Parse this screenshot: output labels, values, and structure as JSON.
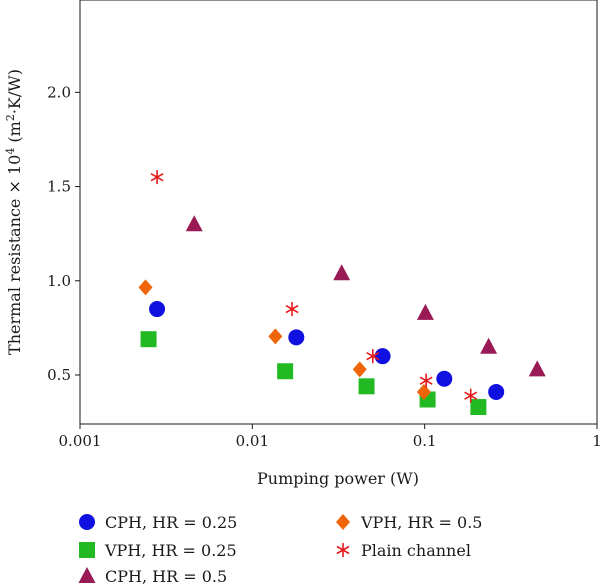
{
  "chart_data": {
    "type": "scatter",
    "x_scale": "log",
    "xlim": [
      0.001,
      1
    ],
    "ylim": [
      0.24,
      2.49
    ],
    "xlabel": "Pumping power (W)",
    "ylabel_main": "Thermal resistance × 10",
    "ylabel_exp": "4",
    "ylabel_unit_pre": " (m",
    "ylabel_unit_exp": "2",
    "ylabel_unit_post": "·K/W)",
    "x_ticks": [
      {
        "value": 0.001,
        "label": "0.001"
      },
      {
        "value": 0.01,
        "label": "0.01"
      },
      {
        "value": 0.1,
        "label": "0.1"
      },
      {
        "value": 1,
        "label": "1"
      }
    ],
    "y_ticks": [
      {
        "value": 0.5,
        "label": "0.5"
      },
      {
        "value": 1.0,
        "label": "1.0"
      },
      {
        "value": 1.5,
        "label": "1.5"
      },
      {
        "value": 2.0,
        "label": "2.0"
      }
    ],
    "legend_position": "bottom",
    "series": [
      {
        "name": "CPH, HR = 0.25",
        "marker": "circle",
        "color": "#1010e0",
        "points": [
          [
            0.0028,
            0.85
          ],
          [
            0.018,
            0.7
          ],
          [
            0.057,
            0.6
          ],
          [
            0.13,
            0.48
          ],
          [
            0.26,
            0.41
          ]
        ]
      },
      {
        "name": "VPH, HR = 0.25",
        "marker": "square",
        "color": "#22b922",
        "points": [
          [
            0.0025,
            0.69
          ],
          [
            0.0155,
            0.52
          ],
          [
            0.046,
            0.44
          ],
          [
            0.104,
            0.37
          ],
          [
            0.205,
            0.33
          ]
        ]
      },
      {
        "name": "CPH, HR = 0.5",
        "marker": "triangle",
        "color": "#991a55",
        "points": [
          [
            0.0046,
            1.3
          ],
          [
            0.033,
            1.04
          ],
          [
            0.101,
            0.83
          ],
          [
            0.235,
            0.65
          ],
          [
            0.45,
            0.53
          ]
        ]
      },
      {
        "name": "VPH, HR = 0.5",
        "marker": "diamond",
        "color": "#f0650a",
        "points": [
          [
            0.0024,
            0.965
          ],
          [
            0.0136,
            0.705
          ],
          [
            0.042,
            0.53
          ],
          [
            0.099,
            0.41
          ]
        ]
      },
      {
        "name": "Plain channel",
        "marker": "asterisk",
        "color": "#e8191b",
        "points": [
          [
            0.0028,
            1.55
          ],
          [
            0.017,
            0.85
          ],
          [
            0.05,
            0.6
          ],
          [
            0.102,
            0.47
          ],
          [
            0.185,
            0.39
          ]
        ]
      }
    ]
  }
}
